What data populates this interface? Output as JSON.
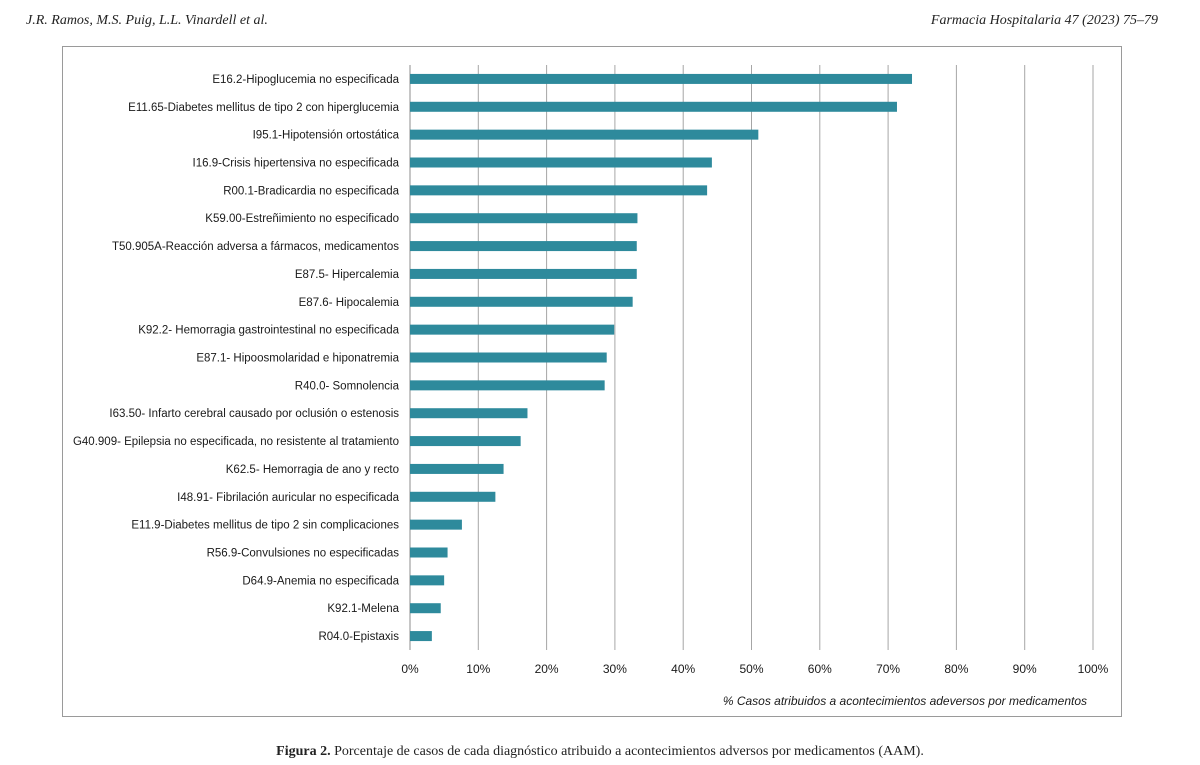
{
  "header": {
    "authors": "J.R. Ramos, M.S. Puig, L.L. Vinardell et al.",
    "journal": "Farmacia Hospitalaria 47 (2023) 75–79"
  },
  "caption": {
    "label": "Figura 2.",
    "text": "Porcentaje de casos de cada diagnóstico atribuido a acontecimientos adversos por medicamentos (AAM)."
  },
  "colors": {
    "bar": "#2e8a9c",
    "grid": "#a6a6a6",
    "axis": "#8c8c8c"
  },
  "chart_data": {
    "type": "bar",
    "orientation": "horizontal",
    "categories": [
      "E16.2-Hipoglucemia no especificada",
      "E11.65-Diabetes mellitus de tipo 2 con hiperglucemia",
      "I95.1-Hipotensión ortostática",
      "I16.9-Crisis hipertensiva no especificada",
      "R00.1-Bradicardia no especificada",
      "K59.00-Estreñimiento no especificado",
      "T50.905A-Reacción adversa a fármacos, medicamentos",
      "E87.5- Hipercalemia",
      "E87.6- Hipocalemia",
      "K92.2- Hemorragia gastrointestinal no especificada",
      "E87.1- Hipoosmolaridad e hiponatremia",
      "R40.0- Somnolencia",
      "I63.50- Infarto cerebral causado por oclusión o estenosis",
      "G40.909- Epilepsia no especificada, no resistente al tratamiento",
      "K62.5- Hemorragia de ano y recto",
      "I48.91- Fibrilación auricular no especificada",
      "E11.9-Diabetes mellitus de tipo 2 sin complicaciones",
      "R56.9-Convulsiones no especificadas",
      "D64.9-Anemia no especificada",
      "K92.1-Melena",
      "R04.0-Epistaxis"
    ],
    "values": [
      73.5,
      71.3,
      51.0,
      44.2,
      43.5,
      33.3,
      33.2,
      33.2,
      32.6,
      29.9,
      28.8,
      28.5,
      17.2,
      16.2,
      13.7,
      12.5,
      7.6,
      5.5,
      5.0,
      4.5,
      3.2
    ],
    "xlabel": "% Casos atribuidos a acontecimientos adeversos por medicamentos",
    "ylabel": "",
    "xlim": [
      0,
      100
    ],
    "xticks": [
      "0%",
      "10%",
      "20%",
      "30%",
      "40%",
      "50%",
      "60%",
      "70%",
      "80%",
      "90%",
      "100%"
    ],
    "grid": true,
    "legend": "none"
  }
}
